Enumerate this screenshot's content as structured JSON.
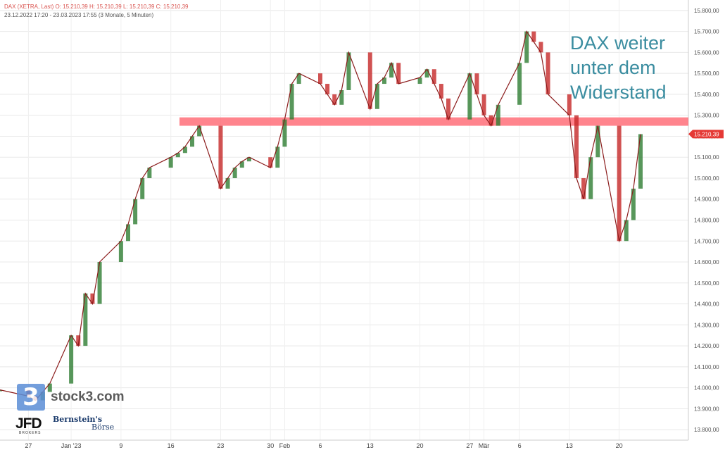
{
  "header": {
    "line1": "DAX (XETRA, Last)  O: 15.210,39  H: 15.210,39  L: 15.210,39  C: 15.210,39",
    "line2": "23.12.2022 17:20 - 23.03.2023 17:55   (3 Monate, 5 Minuten)"
  },
  "annotation": [
    "DAX weiter",
    "unter dem",
    "Widerstand"
  ],
  "branding": {
    "stock3": "stock3.com",
    "logo_glyph": "3",
    "jfd": "JFD",
    "jfd_sub": "BROKERS",
    "bernstein": "Bernstein's",
    "boerse": "Börse"
  },
  "colors": {
    "up": "#2e7d32",
    "down": "#c62828",
    "resistance": "#ff6f79",
    "annotation": "#3b8da0",
    "grid": "#e8e8e8"
  },
  "chart_data": {
    "type": "line",
    "series_name": "DAX (XETRA, Last)",
    "ylim": [
      13750,
      15850
    ],
    "yticks": [
      13800,
      13900,
      14000,
      14100,
      14200,
      14300,
      14400,
      14500,
      14600,
      14700,
      14800,
      14900,
      15000,
      15100,
      15200,
      15300,
      15400,
      15500,
      15600,
      15700,
      15800
    ],
    "ytick_labels": [
      "13.800,00",
      "13.900,00",
      "14.000,00",
      "14.100,00",
      "14.200,00",
      "14.300,00",
      "14.400,00",
      "14.500,00",
      "14.600,00",
      "14.700,00",
      "14.800,00",
      "14.900,00",
      "15.000,00",
      "15.100,00",
      "15.200,00",
      "15.300,00",
      "15.400,00",
      "15.500,00",
      "15.600,00",
      "15.700,00",
      "15.800,00"
    ],
    "xticks": [
      {
        "label": "27",
        "x": "2022-12-27"
      },
      {
        "label": "Jan '23",
        "x": "2023-01-02"
      },
      {
        "label": "9",
        "x": "2023-01-09"
      },
      {
        "label": "16",
        "x": "2023-01-16"
      },
      {
        "label": "23",
        "x": "2023-01-23"
      },
      {
        "label": "30",
        "x": "2023-01-30"
      },
      {
        "label": "Feb",
        "x": "2023-02-01"
      },
      {
        "label": "6",
        "x": "2023-02-06"
      },
      {
        "label": "13",
        "x": "2023-02-13"
      },
      {
        "label": "20",
        "x": "2023-02-20"
      },
      {
        "label": "27",
        "x": "2023-02-27"
      },
      {
        "label": "Mär",
        "x": "2023-03-01"
      },
      {
        "label": "6",
        "x": "2023-03-06"
      },
      {
        "label": "13",
        "x": "2023-03-13"
      },
      {
        "label": "20",
        "x": "2023-03-20"
      }
    ],
    "x": [
      "2022-12-23",
      "2022-12-27",
      "2022-12-28",
      "2022-12-29",
      "2022-12-30",
      "2023-01-02",
      "2023-01-03",
      "2023-01-04",
      "2023-01-05",
      "2023-01-06",
      "2023-01-09",
      "2023-01-10",
      "2023-01-11",
      "2023-01-12",
      "2023-01-13",
      "2023-01-16",
      "2023-01-17",
      "2023-01-18",
      "2023-01-19",
      "2023-01-20",
      "2023-01-23",
      "2023-01-24",
      "2023-01-25",
      "2023-01-26",
      "2023-01-27",
      "2023-01-30",
      "2023-01-31",
      "2023-02-01",
      "2023-02-02",
      "2023-02-03",
      "2023-02-06",
      "2023-02-07",
      "2023-02-08",
      "2023-02-09",
      "2023-02-10",
      "2023-02-13",
      "2023-02-14",
      "2023-02-15",
      "2023-02-16",
      "2023-02-17",
      "2023-02-20",
      "2023-02-21",
      "2023-02-22",
      "2023-02-23",
      "2023-02-24",
      "2023-02-27",
      "2023-02-28",
      "2023-03-01",
      "2023-03-02",
      "2023-03-03",
      "2023-03-06",
      "2023-03-07",
      "2023-03-08",
      "2023-03-09",
      "2023-03-10",
      "2023-03-13",
      "2023-03-14",
      "2023-03-15",
      "2023-03-16",
      "2023-03-17",
      "2023-03-20",
      "2023-03-21",
      "2023-03-22",
      "2023-03-23"
    ],
    "y": [
      13990,
      13960,
      13940,
      13980,
      14020,
      14250,
      14200,
      14450,
      14400,
      14600,
      14700,
      14780,
      14900,
      15000,
      15050,
      15100,
      15120,
      15150,
      15200,
      15250,
      14950,
      15000,
      15050,
      15080,
      15100,
      15050,
      15150,
      15280,
      15450,
      15500,
      15450,
      15400,
      15350,
      15420,
      15600,
      15330,
      15450,
      15480,
      15550,
      15450,
      15480,
      15520,
      15450,
      15380,
      15280,
      15500,
      15400,
      15300,
      15250,
      15350,
      15550,
      15700,
      15650,
      15600,
      15400,
      15300,
      15000,
      14900,
      15100,
      15250,
      14700,
      14800,
      14950,
      15210
    ],
    "last_price": 15210.39,
    "last_label": "15.210,39",
    "resistance_zone": [
      15250,
      15290
    ]
  }
}
